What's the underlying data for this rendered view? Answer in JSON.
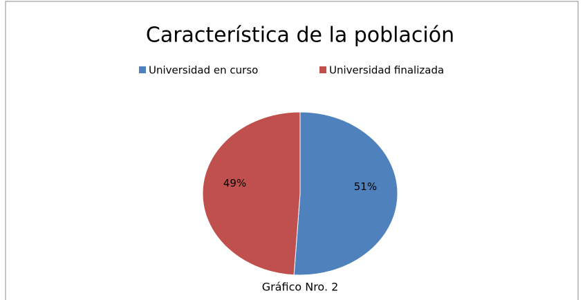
{
  "chart_data": {
    "type": "pie",
    "title": "Característica de la población",
    "categories": [
      "Universidad en curso",
      "Universidad finalizada"
    ],
    "values": [
      51,
      49
    ],
    "value_labels": [
      "51%",
      "49%"
    ],
    "colors": [
      "#4f81bd",
      "#c0504d"
    ],
    "legend": "top",
    "caption": "Gráfico Nro. 2"
  }
}
